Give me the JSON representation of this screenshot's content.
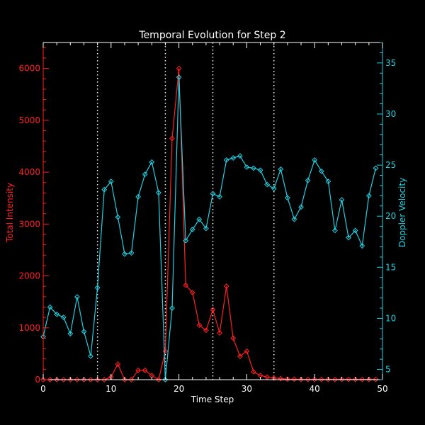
{
  "chart_data": {
    "type": "line",
    "title": "Temporal Evolution for Step 2",
    "xlabel": "Time Step",
    "ylabel_left": "Total Intensity",
    "ylabel_right": "Doppler Velocity",
    "xlim": [
      0,
      50
    ],
    "ylim_left": [
      0,
      6500
    ],
    "ylim_right": [
      4,
      37
    ],
    "x_ticks": [
      0,
      10,
      20,
      30,
      40,
      50
    ],
    "y_ticks_left": [
      0,
      1000,
      2000,
      3000,
      4000,
      5000,
      6000
    ],
    "y_ticks_right": [
      5,
      10,
      15,
      20,
      25,
      30,
      35
    ],
    "vertical_markers": [
      8,
      18,
      25,
      34
    ],
    "grid": false,
    "colors": {
      "background": "#000000",
      "axes": "#ffffff",
      "intensity": "#ff2020",
      "velocity": "#20d0e0",
      "markers": "#ffffff"
    },
    "x": [
      0,
      1,
      2,
      3,
      4,
      5,
      6,
      7,
      8,
      9,
      10,
      11,
      12,
      13,
      14,
      15,
      16,
      17,
      18,
      19,
      20,
      21,
      22,
      23,
      24,
      25,
      26,
      27,
      28,
      29,
      30,
      31,
      32,
      33,
      34,
      35,
      36,
      37,
      38,
      39,
      40,
      41,
      42,
      43,
      44,
      45,
      46,
      47,
      48,
      49
    ],
    "series": [
      {
        "axis": "left",
        "values": [
          0,
          0,
          0,
          0,
          0,
          0,
          0,
          0,
          0,
          0,
          50,
          300,
          0,
          0,
          180,
          180,
          80,
          0,
          550,
          4650,
          6000,
          1820,
          1680,
          1050,
          950,
          1350,
          900,
          1800,
          800,
          450,
          550,
          150,
          80,
          50,
          30,
          20,
          10,
          10,
          5,
          5,
          5,
          5,
          5,
          5,
          5,
          5,
          5,
          5,
          5,
          5
        ]
      },
      {
        "axis": "right",
        "values": [
          8.2,
          11.1,
          10.4,
          10.1,
          8.5,
          12.1,
          8.7,
          6.3,
          13.0,
          22.6,
          23.4,
          19.9,
          16.3,
          16.4,
          21.9,
          24.1,
          25.3,
          22.3,
          3.5,
          11.0,
          33.6,
          17.6,
          18.7,
          19.7,
          18.8,
          22.2,
          21.9,
          25.5,
          25.7,
          25.9,
          24.8,
          24.7,
          24.5,
          23.1,
          22.7,
          24.6,
          21.8,
          19.7,
          20.9,
          23.5,
          25.5,
          24.4,
          23.4,
          18.6,
          21.6,
          17.9,
          18.6,
          17.1,
          22.0,
          24.7
        ]
      }
    ]
  }
}
